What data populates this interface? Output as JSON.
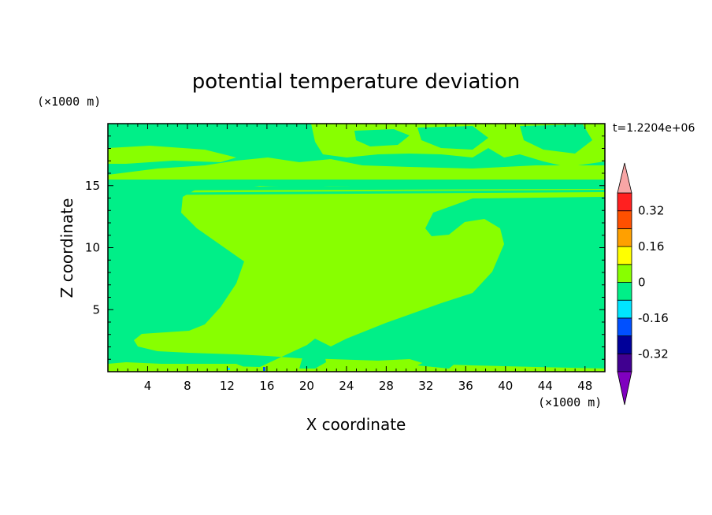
{
  "chart_data": {
    "type": "heatmap",
    "title": "potential temperature deviation",
    "xlabel": "X coordinate",
    "ylabel": "Z coordinate",
    "x_unit": "(×1000 m)",
    "y_unit": "(×1000 m)",
    "time_label": "t=1.2204e+06",
    "xlim": [
      0,
      50
    ],
    "ylim": [
      0,
      20
    ],
    "x_ticks": [
      4,
      8,
      12,
      16,
      20,
      24,
      28,
      32,
      36,
      40,
      44,
      48
    ],
    "y_ticks": [
      5,
      10,
      15
    ],
    "colorbar": {
      "levels": [
        -0.4,
        -0.32,
        -0.24,
        -0.16,
        -0.08,
        0,
        0.08,
        0.16,
        0.24,
        0.32,
        0.4
      ],
      "colors": [
        "#400090",
        "#000099",
        "#0050ff",
        "#00e5ff",
        "#00ef88",
        "#88ff00",
        "#ffff00",
        "#ffa000",
        "#ff5000",
        "#ff2020"
      ],
      "under_color": "#7f00bf",
      "over_color": "#f7a5a5",
      "labels": [
        "0.32",
        "0.16",
        "0",
        "-0.16",
        "-0.32"
      ],
      "label_values": [
        0.32,
        0.16,
        0,
        -0.16,
        -0.32
      ]
    },
    "field": {
      "background_color": "#00ef88",
      "main_color": "#88ff00",
      "description_free": true
    }
  }
}
